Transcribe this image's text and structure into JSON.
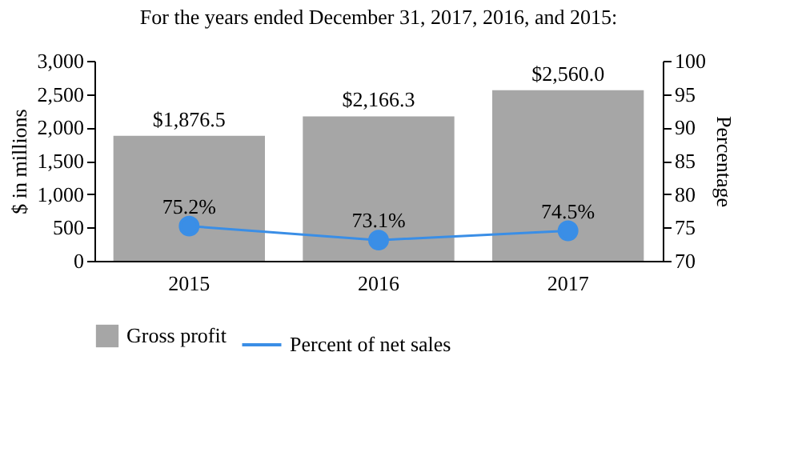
{
  "chart_data": {
    "type": "bar",
    "title": "For the years ended December 31, 2017, 2016, and 2015:",
    "categories": [
      "2015",
      "2016",
      "2017"
    ],
    "ylabel": "$ in millions",
    "y2label": "Percentage",
    "ylim": [
      0,
      3000
    ],
    "yticks": [
      0,
      500,
      {
        "value": 1000,
        "label": "1,000"
      },
      {
        "value": 1500,
        "label": "1,500"
      },
      {
        "value": 2000,
        "label": "2,000"
      },
      {
        "value": 2500,
        "label": "2,500"
      },
      {
        "value": 3000,
        "label": "3,000"
      }
    ],
    "y2lim": [
      70,
      100
    ],
    "y2ticks": [
      70,
      75,
      80,
      85,
      90,
      95,
      100
    ],
    "series": [
      {
        "name": "Gross profit",
        "color": "#a6a6a6",
        "values": [
          1876.5,
          2166.3,
          2560.0
        ],
        "value_labels": [
          "$1,876.5",
          "$2,166.3",
          "$2,560.0"
        ]
      },
      {
        "name": "Percent of net sales",
        "type": "line",
        "axis": "y2",
        "color": "#3a8ee6",
        "marker": "circle",
        "values": [
          75.2,
          73.1,
          74.5
        ],
        "value_labels": [
          "75.2%",
          "73.1%",
          "74.5%"
        ]
      }
    ],
    "legend": "bottom",
    "grid": false
  }
}
